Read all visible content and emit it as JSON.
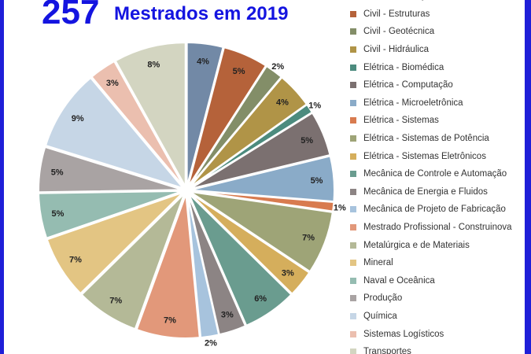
{
  "header": {
    "total": "257",
    "title": "Mestrados em 2019"
  },
  "chart_data": {
    "type": "pie",
    "start_angle_deg": 0,
    "direction": "clockwise",
    "slices": [
      {
        "name": "Civil - Construção Civil e Urbana",
        "label": "4%",
        "value": 4,
        "color": "#7289a6"
      },
      {
        "name": "Civil - Estruturas",
        "label": "5%",
        "value": 5,
        "color": "#b5623a"
      },
      {
        "name": "Civil - Geotécnica",
        "label": "2%",
        "value": 2,
        "color": "#838e68"
      },
      {
        "name": "Civil - Hidráulica",
        "label": "4%",
        "value": 4,
        "color": "#b09447"
      },
      {
        "name": "Elétrica - Biomédica",
        "label": "1%",
        "value": 1,
        "color": "#4c8b7e"
      },
      {
        "name": "Elétrica - Computação",
        "label": "5%",
        "value": 5,
        "color": "#7b7070"
      },
      {
        "name": "Elétrica - Microeletrônica",
        "label": "5%",
        "value": 5,
        "color": "#8aabc8"
      },
      {
        "name": "Elétrica - Sistemas",
        "label": "1%",
        "value": 1,
        "color": "#d87b4f"
      },
      {
        "name": "Elétrica - Sistemas de Potência",
        "label": "7%",
        "value": 7,
        "color": "#9ea477"
      },
      {
        "name": "Elétrica - Sistemas Eletrônicos",
        "label": "3%",
        "value": 3,
        "color": "#d5ae5c"
      },
      {
        "name": "Mecânica de Controle e Automação",
        "label": "6%",
        "value": 6,
        "color": "#6a9c8f"
      },
      {
        "name": "Mecânica de Energia e Fluidos",
        "label": "3%",
        "value": 3,
        "color": "#8c8484"
      },
      {
        "name": "Mecânica de Projeto de Fabricação",
        "label": "2%",
        "value": 2,
        "color": "#a7c3dd"
      },
      {
        "name": "Mestrado Profissional - Construinova",
        "label": "7%",
        "value": 7,
        "color": "#e2987a"
      },
      {
        "name": "Metalúrgica e de Materiais",
        "label": "7%",
        "value": 7,
        "color": "#b4b997"
      },
      {
        "name": "Mineral",
        "label": "7%",
        "value": 7,
        "color": "#e3c583"
      },
      {
        "name": "Naval e Oceânica",
        "label": "5%",
        "value": 5,
        "color": "#95bcb1"
      },
      {
        "name": "Produção",
        "label": "5%",
        "value": 5,
        "color": "#a9a3a3"
      },
      {
        "name": "Química",
        "label": "9%",
        "value": 9,
        "color": "#c6d6e6"
      },
      {
        "name": "Sistemas Logísticos",
        "label": "3%",
        "value": 3,
        "color": "#ebbfaf"
      },
      {
        "name": "Transportes",
        "label": "8%",
        "value": 8,
        "color": "#d3d5c1"
      }
    ]
  }
}
